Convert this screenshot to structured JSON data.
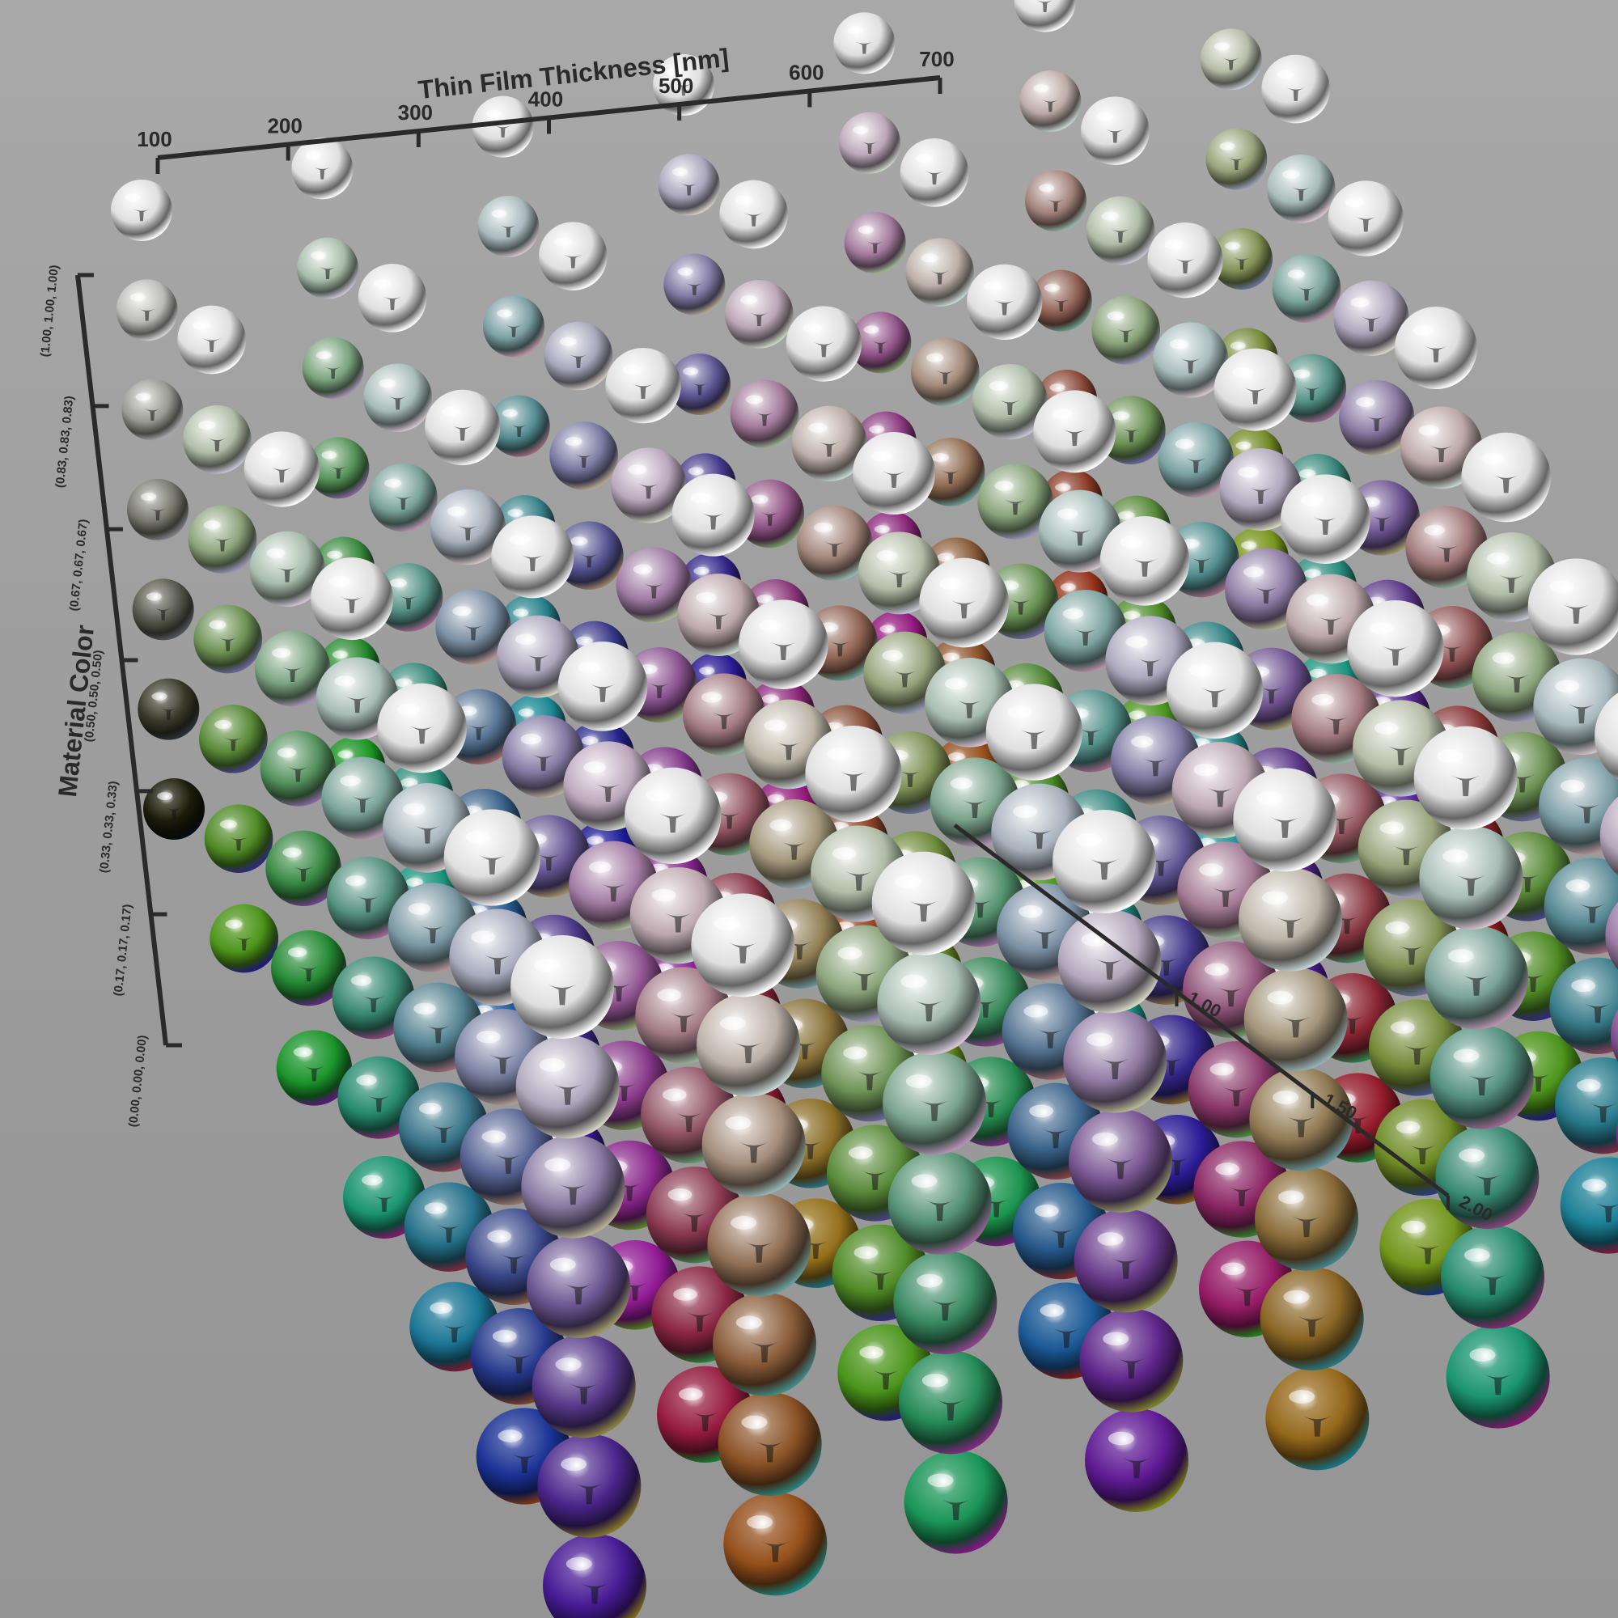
{
  "chart_data": {
    "type": "scatter",
    "render_style": "3D grid of reflective spheres",
    "x_axis": {
      "label": "Thin Film Thickness [nm]",
      "ticks": [
        100,
        200,
        300,
        400,
        500,
        600,
        700
      ],
      "tick_labels": [
        "100",
        "200",
        "300",
        "400",
        "500",
        "600",
        "700"
      ],
      "range": [
        100,
        700
      ]
    },
    "y_axis": {
      "label": "Material Color",
      "ticks": [
        0,
        0.17,
        0.33,
        0.5,
        0.67,
        0.83,
        1.0
      ],
      "tick_labels": [
        "(0.00, 0.00, 0.00)",
        "(0.17, 0.17, 0.17)",
        "(0.33, 0.33, 0.33)",
        "(0.50, 0.50, 0.50)",
        "(0.67, 0.67, 0.67)",
        "(0.83, 0.83, 0.83)",
        "(1.00, 1.00, 1.00)"
      ],
      "range": [
        0,
        1
      ]
    },
    "z_axis": {
      "label": "",
      "ticks": [
        1.0,
        1.5,
        2.0
      ],
      "tick_labels": [
        "1.00",
        "1.50",
        "2.00"
      ],
      "range": [
        1.0,
        2.0
      ]
    },
    "grid": false,
    "legend": "none",
    "colors": {
      "background": "#9d9d9d",
      "axis": "#2a2a2a",
      "sphere_white": "#e8e8e8",
      "sphere_black": "#111111"
    },
    "sphere_grid_size": [
      7,
      7,
      7
    ]
  }
}
